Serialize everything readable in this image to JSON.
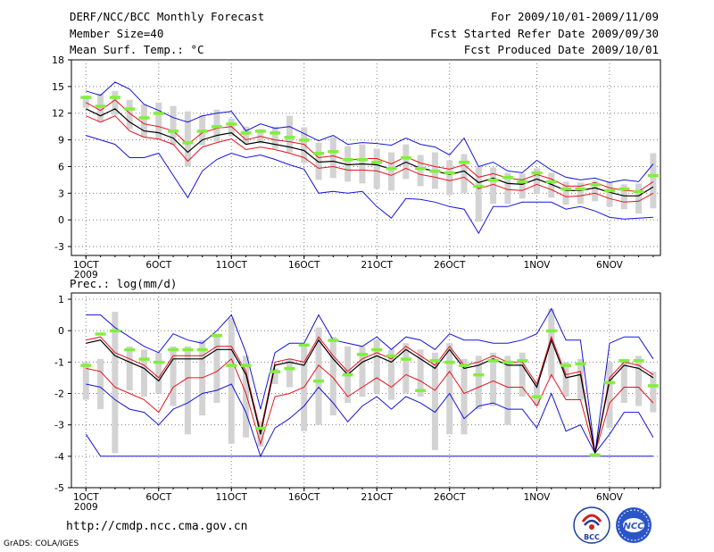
{
  "header": {
    "title": "DERF/NCC/BCC Monthly Forecast",
    "member_size": "Member Size=40",
    "variable1": "Mean Surf. Temp.: °C",
    "for_period": "For 2009/10/01-2009/11/09",
    "fcst_started": "Fcst Started Refer Date 2009/09/30",
    "fcst_produced": "Fcst Produced Date 2009/10/01"
  },
  "footer": {
    "url": "http://cmdp.ncc.cma.gov.cn",
    "grads": "GrADS: COLA/IGES",
    "logo1": "BCC",
    "logo2": "NCC"
  },
  "colors": {
    "mean": "#000000",
    "spread": "#e8121e",
    "extreme": "#1515d8",
    "obs_marker": "#7ff03c",
    "box": "#d3d3d3",
    "grid": "#7d7d7d"
  },
  "chart_data": [
    {
      "type": "line",
      "title": "Mean Surf. Temp.: °C",
      "ylabel": "°C",
      "ylim": [
        -4,
        18
      ],
      "yticks": [
        -3,
        0,
        3,
        6,
        9,
        12,
        15,
        18
      ],
      "xticks": [
        {
          "day": 1,
          "label": "1OCT"
        },
        {
          "day": 6,
          "label": "6OCT"
        },
        {
          "day": 11,
          "label": "11OCT"
        },
        {
          "day": 16,
          "label": "16OCT"
        },
        {
          "day": 21,
          "label": "21OCT"
        },
        {
          "day": 26,
          "label": "26OCT"
        },
        {
          "day": 32,
          "label": "1NOV"
        },
        {
          "day": 37,
          "label": "6NOV"
        }
      ],
      "year_label": "2009",
      "days": [
        1,
        2,
        3,
        4,
        5,
        6,
        7,
        8,
        9,
        10,
        11,
        12,
        13,
        14,
        15,
        16,
        17,
        18,
        19,
        20,
        21,
        22,
        23,
        24,
        25,
        26,
        27,
        28,
        29,
        30,
        31,
        32,
        33,
        34,
        35,
        36,
        37,
        38,
        39,
        40
      ],
      "series": [
        {
          "name": "max",
          "values": [
            14.5,
            14.0,
            15.5,
            14.7,
            13.0,
            12.3,
            11.5,
            11.0,
            11.7,
            12.0,
            12.2,
            10.0,
            10.8,
            10.3,
            10.5,
            9.7,
            8.9,
            9.5,
            8.5,
            8.7,
            8.6,
            8.4,
            9.2,
            8.5,
            8.2,
            7.3,
            9.2,
            6.0,
            6.5,
            5.5,
            5.3,
            6.7,
            5.6,
            4.8,
            4.5,
            4.7,
            4.2,
            4.5,
            4.3,
            6.3
          ]
        },
        {
          "name": "spread_upper",
          "values": [
            13.2,
            12.3,
            13.5,
            12.0,
            10.8,
            10.5,
            10.0,
            8.5,
            9.8,
            10.3,
            10.5,
            9.0,
            9.4,
            9.0,
            8.8,
            8.5,
            7.0,
            7.2,
            6.7,
            6.9,
            6.9,
            6.3,
            7.1,
            6.4,
            6.0,
            5.7,
            6.2,
            4.8,
            5.2,
            4.7,
            4.5,
            5.1,
            4.6,
            3.8,
            3.8,
            4.2,
            3.6,
            3.3,
            3.2,
            4.3
          ]
        },
        {
          "name": "mean",
          "values": [
            12.5,
            11.7,
            12.5,
            11.0,
            10.0,
            9.8,
            9.2,
            7.6,
            9.0,
            9.5,
            9.8,
            8.5,
            8.8,
            8.5,
            8.2,
            7.8,
            6.5,
            6.6,
            6.2,
            6.3,
            6.2,
            5.7,
            6.5,
            5.8,
            5.5,
            5.1,
            5.5,
            4.2,
            4.7,
            4.1,
            4.0,
            4.6,
            4.0,
            3.3,
            3.3,
            3.6,
            3.1,
            2.7,
            2.7,
            3.7
          ]
        },
        {
          "name": "spread_lower",
          "values": [
            11.7,
            11.0,
            11.7,
            10.0,
            9.3,
            9.1,
            8.5,
            6.6,
            8.2,
            8.7,
            9.1,
            7.9,
            8.2,
            7.9,
            7.5,
            7.0,
            5.8,
            6.0,
            5.6,
            5.6,
            5.5,
            5.0,
            5.8,
            5.1,
            4.8,
            4.4,
            4.8,
            3.5,
            4.0,
            3.4,
            3.3,
            4.0,
            3.4,
            2.6,
            2.7,
            3.0,
            2.4,
            2.0,
            2.1,
            3.0
          ]
        },
        {
          "name": "min",
          "values": [
            9.5,
            9.0,
            8.5,
            7.0,
            7.0,
            7.5,
            5.0,
            2.5,
            5.5,
            6.8,
            7.5,
            7.0,
            7.3,
            6.8,
            6.2,
            5.7,
            3.0,
            3.2,
            3.0,
            3.2,
            1.5,
            0.2,
            2.4,
            2.3,
            2.0,
            1.5,
            1.2,
            -1.5,
            1.5,
            1.5,
            2.0,
            2.0,
            2.0,
            1.2,
            1.5,
            1.0,
            0.3,
            0.1,
            0.2,
            0.3
          ]
        },
        {
          "name": "box_top",
          "values": [
            14.0,
            14.2,
            14.5,
            13.5,
            13.0,
            13.2,
            12.8,
            12.2,
            11.8,
            12.4,
            11.4,
            10.5,
            10.2,
            10.5,
            11.7,
            10.4,
            8.7,
            9.3,
            8.3,
            8.5,
            8.0,
            7.6,
            8.5,
            7.3,
            7.6,
            6.7,
            7.4,
            6.0,
            5.9,
            5.3,
            5.2,
            5.8,
            5.3,
            4.3,
            4.2,
            4.4,
            4.3,
            4.0,
            4.1,
            7.5
          ]
        },
        {
          "name": "box_bottom",
          "values": [
            12.6,
            11.0,
            11.8,
            10.2,
            9.3,
            9.0,
            8.4,
            6.0,
            8.4,
            8.8,
            9.4,
            8.6,
            8.6,
            8.0,
            7.6,
            6.4,
            4.5,
            4.7,
            4.3,
            4.1,
            3.5,
            3.3,
            4.6,
            3.8,
            3.5,
            2.8,
            3.0,
            -0.2,
            1.8,
            1.8,
            2.4,
            2.9,
            2.5,
            1.7,
            1.8,
            2.1,
            1.5,
            1.2,
            0.7,
            1.3
          ]
        },
        {
          "name": "observed",
          "values": [
            13.8,
            12.8,
            13.8,
            12.5,
            11.5,
            12.0,
            10.0,
            8.7,
            10.0,
            10.5,
            10.8,
            9.8,
            10.0,
            9.8,
            9.3,
            9.0,
            7.5,
            7.7,
            6.8,
            6.8,
            6.5,
            5.8,
            7.0,
            5.8,
            5.5,
            5.3,
            6.5,
            3.8,
            4.5,
            4.8,
            4.3,
            5.3,
            4.3,
            3.5,
            3.5,
            4.0,
            3.3,
            3.5,
            3.2,
            5.0
          ]
        }
      ]
    },
    {
      "type": "line",
      "title": "Prec.: log(mm/d)",
      "ylabel": "log(mm/d)",
      "ylim": [
        -5,
        1.2
      ],
      "yticks": [
        -5,
        -4,
        -3,
        -2,
        -1,
        0,
        1
      ],
      "xticks": [
        {
          "day": 1,
          "label": "1OCT"
        },
        {
          "day": 6,
          "label": "6OCT"
        },
        {
          "day": 11,
          "label": "11OCT"
        },
        {
          "day": 16,
          "label": "16OCT"
        },
        {
          "day": 21,
          "label": "21OCT"
        },
        {
          "day": 26,
          "label": "26OCT"
        },
        {
          "day": 32,
          "label": "1NOV"
        },
        {
          "day": 37,
          "label": "6NOV"
        }
      ],
      "year_label": "2009",
      "days": [
        1,
        2,
        3,
        4,
        5,
        6,
        7,
        8,
        9,
        10,
        11,
        12,
        13,
        14,
        15,
        16,
        17,
        18,
        19,
        20,
        21,
        22,
        23,
        24,
        25,
        26,
        27,
        28,
        29,
        30,
        31,
        32,
        33,
        34,
        35,
        36,
        37,
        38,
        39,
        40
      ],
      "series": [
        {
          "name": "max",
          "values": [
            0.5,
            0.5,
            0.1,
            -0.2,
            -0.5,
            -0.7,
            -0.1,
            -0.3,
            -0.4,
            0.0,
            0.5,
            -0.7,
            -2.5,
            -0.7,
            -0.4,
            -0.4,
            0.5,
            -0.3,
            -0.4,
            -0.5,
            -0.2,
            -0.6,
            -0.2,
            -0.3,
            -0.6,
            -0.1,
            -0.3,
            -0.3,
            -0.4,
            -0.4,
            -0.3,
            -0.1,
            0.7,
            -0.3,
            -0.3,
            -3.9,
            -0.4,
            -0.2,
            -0.2,
            -0.9
          ]
        },
        {
          "name": "spread_upper",
          "values": [
            -0.3,
            -0.2,
            -0.7,
            -0.9,
            -1.1,
            -1.5,
            -0.8,
            -0.8,
            -0.8,
            -0.5,
            -0.5,
            -1.3,
            -3.2,
            -1.0,
            -0.9,
            -1.0,
            -0.2,
            -0.8,
            -1.3,
            -0.9,
            -0.7,
            -0.9,
            -0.5,
            -0.8,
            -1.1,
            -0.5,
            -1.1,
            -1.0,
            -0.8,
            -1.0,
            -1.0,
            -1.7,
            -0.2,
            -1.4,
            -1.3,
            -3.9,
            -1.5,
            -1.0,
            -1.1,
            -1.4
          ]
        },
        {
          "name": "mean",
          "values": [
            -0.4,
            -0.3,
            -0.8,
            -1.0,
            -1.2,
            -1.6,
            -0.9,
            -0.9,
            -0.9,
            -0.6,
            -0.6,
            -1.4,
            -3.3,
            -1.1,
            -1.0,
            -1.1,
            -0.3,
            -0.9,
            -1.4,
            -1.0,
            -0.8,
            -1.0,
            -0.6,
            -0.9,
            -1.2,
            -0.6,
            -1.2,
            -1.1,
            -0.9,
            -1.1,
            -1.1,
            -1.8,
            -0.3,
            -1.5,
            -1.4,
            -3.9,
            -1.6,
            -1.1,
            -1.2,
            -1.5
          ]
        },
        {
          "name": "spread_lower",
          "values": [
            -1.2,
            -1.3,
            -1.8,
            -2.0,
            -2.2,
            -2.6,
            -1.8,
            -1.5,
            -1.5,
            -1.3,
            -0.9,
            -2.0,
            -3.6,
            -2.1,
            -2.0,
            -1.8,
            -1.1,
            -1.5,
            -2.1,
            -1.8,
            -1.5,
            -1.8,
            -1.4,
            -1.6,
            -1.9,
            -1.3,
            -2.0,
            -1.8,
            -1.6,
            -1.8,
            -1.8,
            -2.4,
            -1.4,
            -2.2,
            -2.2,
            -3.9,
            -2.3,
            -1.8,
            -1.8,
            -2.3
          ]
        },
        {
          "name": "min",
          "values": [
            -1.7,
            -1.8,
            -2.2,
            -2.5,
            -2.6,
            -3.0,
            -2.5,
            -2.3,
            -2.0,
            -1.9,
            -1.7,
            -2.6,
            -4.0,
            -3.1,
            -2.8,
            -2.4,
            -1.8,
            -2.3,
            -2.9,
            -2.4,
            -2.1,
            -2.5,
            -2.1,
            -2.3,
            -2.6,
            -2.0,
            -2.8,
            -2.4,
            -2.3,
            -2.5,
            -2.5,
            -3.1,
            -2.0,
            -3.2,
            -3.0,
            -3.9,
            -3.3,
            -2.6,
            -2.6,
            -3.4
          ]
        },
        {
          "name": "abs_min",
          "values": [
            -3.3,
            -4.0,
            -4.0,
            -4.0,
            -4.0,
            -4.0,
            -4.0,
            -4.0,
            -4.0,
            -4.0,
            -4.0,
            -4.0,
            -4.0,
            -4.0,
            -4.0,
            -4.0,
            -4.0,
            -4.0,
            -4.0,
            -4.0,
            -4.0,
            -4.0,
            -4.0,
            -4.0,
            -4.0,
            -4.0,
            -4.0,
            -4.0,
            -4.0,
            -4.0,
            -4.0,
            -4.0,
            -4.0,
            -4.0,
            -4.0,
            -4.0,
            -4.0,
            -4.0,
            -4.0,
            -4.0
          ]
        },
        {
          "name": "box_top",
          "values": [
            -1.0,
            -0.9,
            0.6,
            -0.5,
            -0.6,
            -0.7,
            -0.5,
            -0.5,
            -0.3,
            -0.1,
            0.4,
            -0.8,
            -2.9,
            -1.2,
            -0.9,
            -0.5,
            0.1,
            -0.2,
            -0.5,
            -0.5,
            -0.3,
            -0.6,
            -0.4,
            -0.6,
            -0.7,
            -0.4,
            -0.9,
            -0.8,
            -0.7,
            -0.8,
            -0.7,
            -1.6,
            0.7,
            -1.0,
            -0.9,
            -3.9,
            -1.0,
            -0.9,
            -0.8,
            -1.3
          ]
        },
        {
          "name": "box_bottom",
          "values": [
            -2.2,
            -2.5,
            -3.9,
            -1.9,
            -2.1,
            -2.0,
            -2.4,
            -3.3,
            -2.7,
            -2.3,
            -3.6,
            -3.4,
            -3.7,
            -1.7,
            -1.8,
            -3.2,
            -3.0,
            -2.7,
            -2.3,
            -2.1,
            -2.0,
            -2.2,
            -2.0,
            -2.1,
            -3.8,
            -3.3,
            -3.3,
            -2.5,
            -2.4,
            -3.0,
            -2.1,
            -2.4,
            -1.5,
            -2.1,
            -2.2,
            -3.9,
            -3.1,
            -2.3,
            -2.4,
            -2.6
          ]
        },
        {
          "name": "observed",
          "values": [
            -1.1,
            -0.1,
            0.0,
            -0.6,
            -0.9,
            -1.0,
            -0.6,
            -0.6,
            -0.6,
            -0.15,
            -1.1,
            -1.1,
            -3.1,
            -1.3,
            -1.2,
            -0.45,
            -1.6,
            -0.3,
            -1.4,
            -0.75,
            -0.6,
            -0.8,
            -0.9,
            -1.9,
            -0.95,
            -1.0,
            -1.1,
            -1.4,
            -0.95,
            -1.0,
            -0.95,
            -2.1,
            0.0,
            -1.1,
            -1.05,
            -3.95,
            -1.65,
            -0.95,
            -0.95,
            -1.75
          ]
        }
      ]
    }
  ]
}
